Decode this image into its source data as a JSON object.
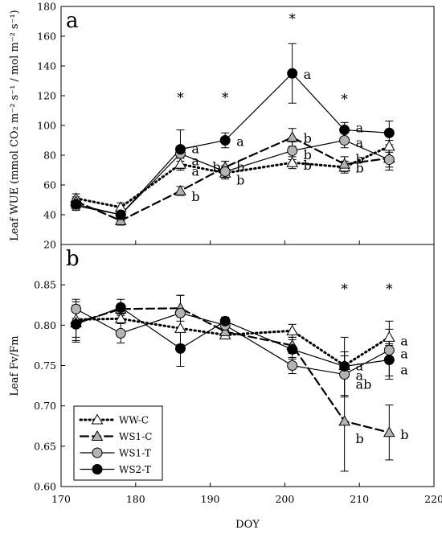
{
  "chart_data": [
    {
      "type": "line",
      "panel_label": "a",
      "ylabel": "Leaf WUE (mmol CO₂ m⁻² s⁻¹ / mol m⁻² s⁻¹)",
      "xlim": [
        170,
        220
      ],
      "ylim": [
        20,
        180
      ],
      "yticks": [
        "20",
        "40",
        "60",
        "80",
        "100",
        "120",
        "140",
        "160",
        "180"
      ],
      "x": [
        172,
        178,
        186,
        192,
        201,
        208,
        214
      ],
      "series": [
        {
          "name": "WW-C",
          "marker": "triangle",
          "fill": "#ffffff",
          "dash": "dotted",
          "values": [
            51,
            45,
            74,
            68,
            75,
            72,
            86
          ],
          "err": [
            3,
            3,
            4,
            4,
            4,
            4,
            4
          ]
        },
        {
          "name": "WS1-C",
          "marker": "triangle",
          "fill": "#b3b3b3",
          "dash": "dashed",
          "values": [
            49,
            36,
            56,
            72,
            92,
            74,
            78
          ],
          "err": [
            3,
            3,
            3,
            4,
            6,
            5,
            6
          ]
        },
        {
          "name": "WS1-T",
          "marker": "circle",
          "fill": "#b3b3b3",
          "dash": "solid",
          "values": [
            46,
            40,
            81,
            69,
            83,
            90,
            77
          ],
          "err": [
            3,
            3,
            5,
            4,
            6,
            5,
            7
          ]
        },
        {
          "name": "WS2-T",
          "marker": "circle",
          "fill": "#000000",
          "dash": "solid",
          "values": [
            47,
            40,
            84,
            90,
            135,
            97,
            95
          ],
          "err": [
            4,
            4,
            13,
            5,
            20,
            5,
            8
          ]
        }
      ],
      "annotations": [
        {
          "text": "*",
          "x": 186,
          "y": 120
        },
        {
          "text": "*",
          "x": 192,
          "y": 120
        },
        {
          "text": "*",
          "x": 201,
          "y": 173
        },
        {
          "text": "*",
          "x": 208,
          "y": 119
        },
        {
          "text": "a",
          "x": 187.5,
          "y": 84
        },
        {
          "text": "a",
          "x": 187.5,
          "y": 76
        },
        {
          "text": "a",
          "x": 187.5,
          "y": 69
        },
        {
          "text": "b",
          "x": 187.5,
          "y": 52
        },
        {
          "text": "a",
          "x": 193.5,
          "y": 89
        },
        {
          "text": "b",
          "x": 190.3,
          "y": 72
        },
        {
          "text": "b",
          "x": 193.5,
          "y": 72
        },
        {
          "text": "b",
          "x": 193.5,
          "y": 63
        },
        {
          "text": "a",
          "x": 202.5,
          "y": 134
        },
        {
          "text": "b",
          "x": 202.5,
          "y": 91
        },
        {
          "text": "b",
          "x": 202.5,
          "y": 80
        },
        {
          "text": "b",
          "x": 202.5,
          "y": 73
        },
        {
          "text": "a",
          "x": 209.5,
          "y": 98
        },
        {
          "text": "a",
          "x": 209.5,
          "y": 88
        },
        {
          "text": "b",
          "x": 209.5,
          "y": 77
        },
        {
          "text": "b",
          "x": 209.5,
          "y": 71
        }
      ]
    },
    {
      "type": "line",
      "panel_label": "b",
      "ylabel": "Leaf Fv/Fm",
      "xlabel": "DOY",
      "xlim": [
        170,
        220
      ],
      "ylim": [
        0.6,
        0.9
      ],
      "yticks": [
        "0.60",
        "0.65",
        "0.70",
        "0.75",
        "0.80",
        "0.85"
      ],
      "xticks": [
        "170",
        "180",
        "190",
        "200",
        "210",
        "220"
      ],
      "x": [
        172,
        178,
        186,
        192,
        201,
        208,
        214
      ],
      "series": [
        {
          "name": "WW-C",
          "values": [
            0.807,
            0.808,
            0.796,
            0.788,
            0.793,
            0.75,
            0.785
          ],
          "err": [
            0.022,
            0.006,
            0.02,
            0.005,
            0.008,
            0.012,
            0.01
          ]
        },
        {
          "name": "WS1-C",
          "values": [
            0.803,
            0.82,
            0.821,
            0.792,
            0.775,
            0.681,
            0.667
          ],
          "err": [
            0.022,
            0.006,
            0.016,
            0.006,
            0.01,
            0.062,
            0.034
          ]
        },
        {
          "name": "WS1-T",
          "values": [
            0.82,
            0.79,
            0.815,
            0.8,
            0.75,
            0.739,
            0.769
          ],
          "err": [
            0.012,
            0.012,
            0.022,
            0.006,
            0.01,
            0.028,
            0.036
          ]
        },
        {
          "name": "WS2-T",
          "values": [
            0.801,
            0.822,
            0.771,
            0.805,
            0.77,
            0.749,
            0.757
          ],
          "err": [
            0.022,
            0.01,
            0.022,
            0.005,
            0.012,
            0.036,
            0.02
          ]
        }
      ],
      "annotations": [
        {
          "text": "*",
          "x": 208,
          "y": 0.847
        },
        {
          "text": "*",
          "x": 214,
          "y": 0.847
        },
        {
          "text": "a",
          "x": 209.5,
          "y": 0.749
        },
        {
          "text": "a",
          "x": 209.5,
          "y": 0.737
        },
        {
          "text": "ab",
          "x": 209.5,
          "y": 0.726
        },
        {
          "text": "b",
          "x": 209.5,
          "y": 0.659
        },
        {
          "text": "a",
          "x": 215.5,
          "y": 0.78
        },
        {
          "text": "a",
          "x": 215.5,
          "y": 0.764
        },
        {
          "text": "a",
          "x": 215.5,
          "y": 0.744
        },
        {
          "text": "b",
          "x": 215.5,
          "y": 0.664
        }
      ],
      "legend": {
        "placement": "bottom-left",
        "entries": [
          "WW-C",
          "WS1-C",
          "WS1-T",
          "WS2-T"
        ]
      }
    }
  ]
}
